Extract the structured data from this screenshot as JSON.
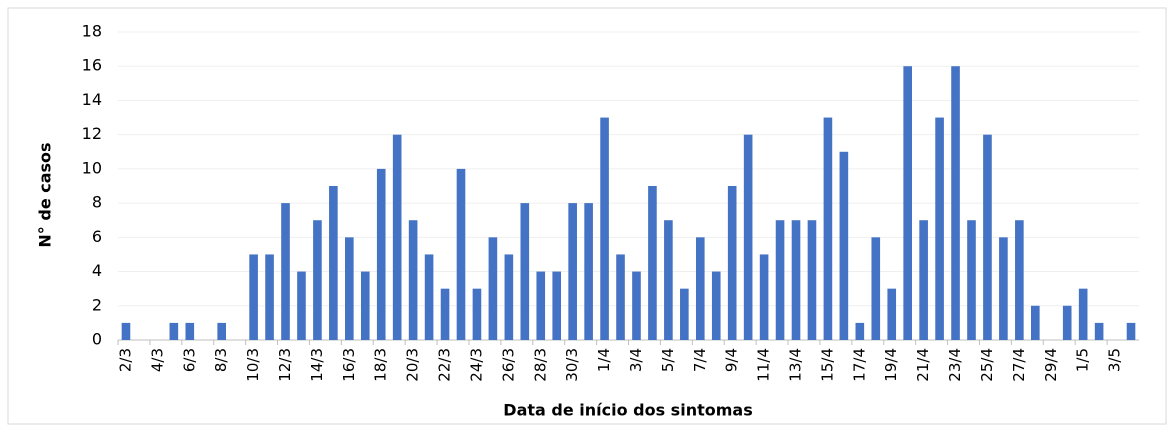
{
  "chart_data": {
    "type": "bar",
    "x_label": "Data de início dos sintomas",
    "y_label": "N° de casos",
    "categories": [
      "2/3",
      null,
      "4/3",
      null,
      "6/3",
      null,
      "8/3",
      null,
      "10/3",
      null,
      "12/3",
      null,
      "14/3",
      null,
      "16/3",
      null,
      "18/3",
      null,
      "20/3",
      null,
      "22/3",
      null,
      "24/3",
      null,
      "26/3",
      null,
      "28/3",
      null,
      "30/3",
      null,
      "1/4",
      null,
      "3/4",
      null,
      "5/4",
      null,
      "7/4",
      null,
      "9/4",
      null,
      "11/4",
      null,
      "13/4",
      null,
      "15/4",
      null,
      "17/4",
      null,
      "19/4",
      null,
      "21/4",
      null,
      "23/4",
      null,
      "25/4",
      null,
      "27/4",
      null,
      "29/4",
      null,
      "1/5",
      null,
      "3/5",
      null
    ],
    "values": [
      1,
      0,
      0,
      1,
      1,
      0,
      1,
      0,
      5,
      5,
      8,
      4,
      7,
      9,
      6,
      4,
      10,
      12,
      7,
      5,
      3,
      10,
      3,
      6,
      5,
      8,
      4,
      4,
      8,
      8,
      13,
      5,
      4,
      9,
      7,
      3,
      6,
      4,
      9,
      12,
      5,
      7,
      7,
      7,
      13,
      11,
      1,
      6,
      3,
      16,
      7,
      13,
      16,
      7,
      12,
      6,
      7,
      2,
      0,
      2,
      3,
      1,
      0,
      1
    ],
    "color": "#4472c4",
    "ylim": [
      0,
      18
    ],
    "yticks": [
      0,
      2,
      4,
      6,
      8,
      10,
      12,
      14,
      16,
      18
    ],
    "grid": true
  }
}
